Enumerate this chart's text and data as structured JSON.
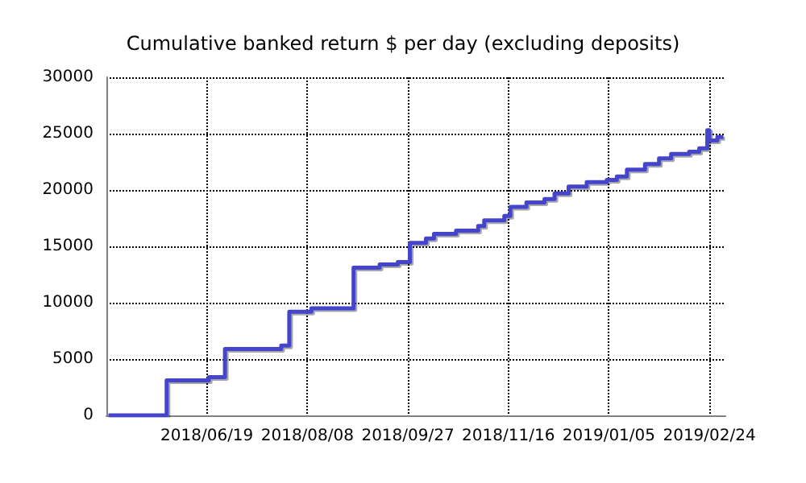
{
  "chart_data": {
    "type": "step",
    "title": "Cumulative banked return $ per day (excluding deposits)",
    "x": [
      "2018-05-01",
      "2018-05-30",
      "2018-06-20",
      "2018-06-28",
      "2018-07-26",
      "2018-07-30",
      "2018-08-10",
      "2018-08-31",
      "2018-09-13",
      "2018-09-22",
      "2018-09-28",
      "2018-10-06",
      "2018-10-10",
      "2018-10-21",
      "2018-11-01",
      "2018-11-04",
      "2018-11-14",
      "2018-11-17",
      "2018-11-25",
      "2018-12-04",
      "2018-12-09",
      "2018-12-16",
      "2018-12-25",
      "2019-01-04",
      "2019-01-09",
      "2019-01-14",
      "2019-01-23",
      "2019-01-30",
      "2019-02-05",
      "2019-02-14",
      "2019-02-19",
      "2019-02-23",
      "2019-02-24",
      "2019-02-28",
      "2019-03-03"
    ],
    "series": [
      {
        "color": "#4444cc",
        "values": [
          0,
          3100,
          3400,
          5900,
          6200,
          9200,
          9500,
          13100,
          13400,
          13600,
          15300,
          15700,
          16100,
          16400,
          16800,
          17300,
          17700,
          18500,
          18900,
          19200,
          19700,
          20300,
          20700,
          20900,
          21200,
          21800,
          22300,
          22800,
          23200,
          23400,
          23700,
          25300,
          24400,
          24700,
          24600
        ]
      }
    ],
    "xlim": [
      "2018-04-30",
      "2019-03-04"
    ],
    "xticks": [
      {
        "value": "2018-06-19",
        "label": "2018/06/19"
      },
      {
        "value": "2018-08-08",
        "label": "2018/08/08"
      },
      {
        "value": "2018-09-27",
        "label": "2018/09/27"
      },
      {
        "value": "2018-11-16",
        "label": "2018/11/16"
      },
      {
        "value": "2019-01-05",
        "label": "2019/01/05"
      },
      {
        "value": "2019-02-24",
        "label": "2019/02/24"
      }
    ],
    "ylim": [
      0,
      30000
    ],
    "yticks": [
      0,
      5000,
      10000,
      15000,
      20000,
      25000,
      30000
    ],
    "grid": true,
    "marker": "none",
    "line_style": "solid"
  }
}
